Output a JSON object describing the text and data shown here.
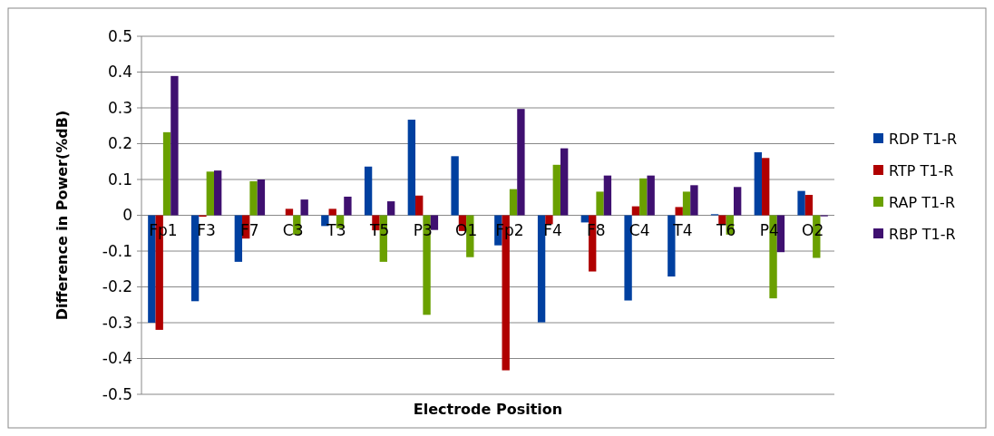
{
  "chart_data": {
    "type": "bar",
    "xlabel": "Electrode Position",
    "ylabel": "Difference in Power(%dB)",
    "categories": [
      "Fp1",
      "F3",
      "F7",
      "C3",
      "T3",
      "T5",
      "P3",
      "O1",
      "Fp2",
      "F4",
      "F8",
      "C4",
      "T4",
      "T6",
      "P4",
      "O2"
    ],
    "series": [
      {
        "name": "RDP T1-R",
        "color": "#0040a0",
        "values": [
          -0.3,
          -0.24,
          -0.13,
          0,
          -0.03,
          0.136,
          0.267,
          0.165,
          -0.084,
          -0.299,
          -0.02,
          -0.238,
          -0.171,
          0.003,
          0.176,
          0.068
        ]
      },
      {
        "name": "RTP T1-R",
        "color": "#b00000",
        "values": [
          -0.32,
          -0.004,
          -0.065,
          0.018,
          0.018,
          -0.042,
          0.055,
          -0.044,
          -0.433,
          -0.025,
          -0.157,
          0.025,
          0.023,
          -0.025,
          0.16,
          0.057
        ]
      },
      {
        "name": "RAP T1-R",
        "color": "#6aa000",
        "values": [
          0.232,
          0.122,
          0.095,
          -0.054,
          -0.036,
          -0.13,
          -0.278,
          -0.117,
          0.073,
          0.141,
          0.066,
          0.103,
          0.066,
          -0.054,
          -0.232,
          -0.119
        ]
      },
      {
        "name": "RBP T1-R",
        "color": "#3f1070",
        "values": [
          0.389,
          0.125,
          0.1,
          0.044,
          0.052,
          0.039,
          -0.041,
          0,
          0.297,
          0.187,
          0.111,
          0.111,
          0.084,
          0.079,
          -0.103,
          -0.003
        ]
      }
    ],
    "ylim": [
      -0.5,
      0.5
    ],
    "yticks": [
      {
        "value": -0.5,
        "label": "-0.5"
      },
      {
        "value": -0.4,
        "label": "-0.4"
      },
      {
        "value": -0.3,
        "label": "-0.3"
      },
      {
        "value": -0.2,
        "label": "-0.2"
      },
      {
        "value": -0.1,
        "label": "-0.1"
      },
      0,
      {
        "value": 0.1,
        "label": "0.1"
      },
      {
        "value": 0.2,
        "label": "0.2"
      },
      {
        "value": 0.3,
        "label": "0.3"
      },
      {
        "value": 0.4,
        "label": "0.4"
      },
      {
        "value": 0.5,
        "label": "0.5"
      }
    ],
    "grid": "y",
    "legend": "right"
  }
}
